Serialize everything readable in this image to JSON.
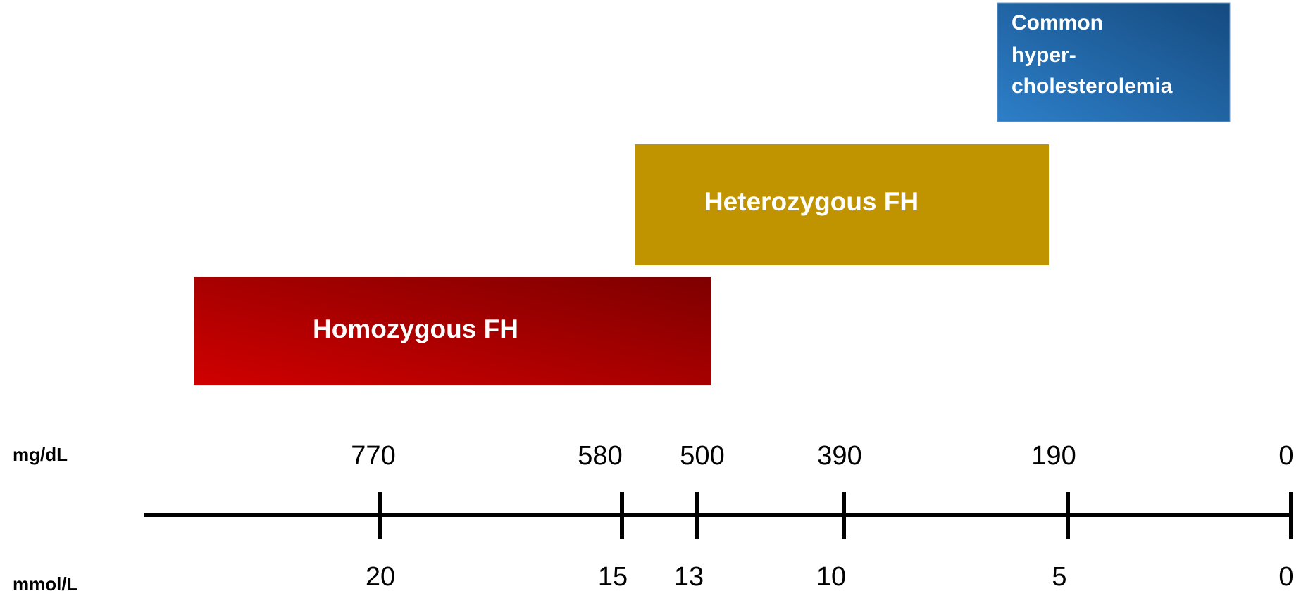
{
  "axis": {
    "units": [
      "mg/dL",
      "mmol/L"
    ],
    "mgdl": [
      770,
      580,
      500,
      390,
      190,
      0
    ],
    "mmol": [
      20,
      15,
      13,
      10,
      5,
      0
    ]
  },
  "ranges": [
    {
      "label": "Homozygous FH"
    },
    {
      "label": "Heterozygous FH"
    },
    {
      "label_lines": [
        "Common",
        "hyper-",
        "cholesterolemia"
      ]
    }
  ]
}
